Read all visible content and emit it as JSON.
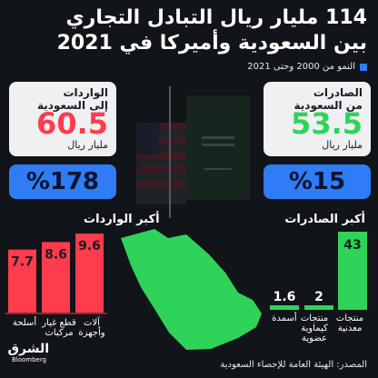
{
  "header": {
    "title_line1": "114 مليار ريال التبادل التجاري",
    "title_line2": "بين السعودية وأميركا في 2021",
    "legend": "النمو من 2000 وحتى 2021"
  },
  "exports": {
    "title": "الصادرات",
    "subtitle": "من السعودية",
    "value": "53.5",
    "unit": "مليار ريال",
    "growth": "%15",
    "top_label": "أكبر الصادرات"
  },
  "imports": {
    "title": "الواردات",
    "subtitle": "إلى السعودية",
    "value": "60.5",
    "unit": "مليار ريال",
    "growth": "%178",
    "top_label": "أكبر الواردات"
  },
  "chart_data": [
    {
      "type": "bar",
      "title": "أكبر الصادرات",
      "categories": [
        "منتجات معدنية",
        "منتجات كيماوية عضوية",
        "أسمدة"
      ],
      "values": [
        43,
        2,
        1.6
      ],
      "color": "#2fd35a"
    },
    {
      "type": "bar",
      "title": "أكبر الواردات",
      "categories": [
        "آلات وأجهزة",
        "قطع غيار مركبات",
        "أسلحة"
      ],
      "values": [
        9.6,
        8.6,
        7.7
      ],
      "color": "#ff3b4e"
    }
  ],
  "labels": {
    "exp_cats": [
      "منتجات",
      "معدنية",
      "منتجات",
      "كيماوية",
      "عضوية",
      "أسمدة"
    ],
    "imp_cats": [
      "آلات",
      "وأجهزة",
      "قطع غيار",
      "مركبات",
      "أسلحة"
    ]
  },
  "brand": {
    "name": "الشرق",
    "sub": "Bloomberg"
  },
  "source": "المصدر: الهيئة العامة للإحصاء السعودية",
  "colors": {
    "background": "#111418",
    "accent": "#2f7cf6",
    "green": "#2fd35a",
    "red": "#ff3b4e"
  }
}
